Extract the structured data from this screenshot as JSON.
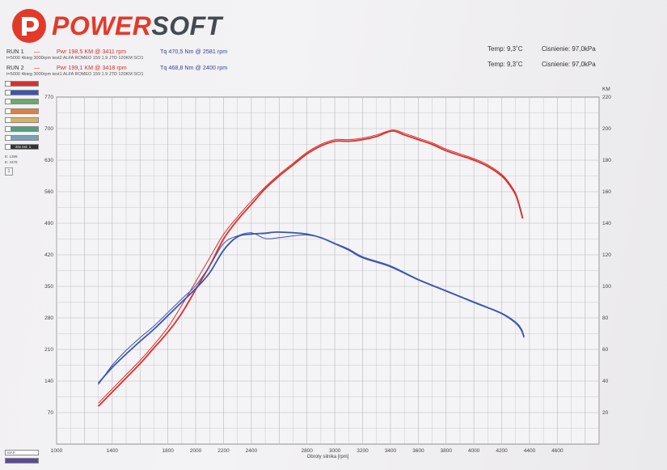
{
  "brand": {
    "name_part1": "POWER",
    "name_part2": "SOFT"
  },
  "run1": {
    "label": "RUN 1",
    "pwr": "Pwr  198,5 KM @ 3411 rpm",
    "tq": "Tq 470,5 Nm @ 2581 rpm",
    "desc": "t=5000 4bieg 3000rpm test2 ALFA ROMEO 159 1.9 JTD 120KM SCI1",
    "temp": "Temp: 9,3˚C",
    "pressure": "Cisnienie: 97,0kPa"
  },
  "run2": {
    "label": "RUN 2",
    "pwr": "Pwr  199,1 KM @ 3418 rpm",
    "tq": "Tq 468,8 Nm @ 2400 rpm",
    "desc": "t=5000 4bieg 3000rpm test1 ALFA ROMEO 159 1.9 JTD 120KM SCI1",
    "temp": "Temp: 9,3˚C",
    "pressure": "Cisnienie: 97,0kPa"
  },
  "colors": {
    "power": "#d8302a",
    "torque": "#3b55b0",
    "grid": "#b8b8bc"
  },
  "left_legend": {
    "items": [
      "",
      "",
      "",
      "",
      "",
      "",
      "",
      "2sv ext. 1"
    ],
    "colors": [
      "#d8302a",
      "#3b55b0",
      "#6aaa6a",
      "#e08040",
      "#d8b060",
      "#50a080",
      "#7aa0c0",
      "#333333"
    ],
    "tail": [
      "E: 1399",
      "E: 4378"
    ],
    "box": "1",
    "bottom": [
      "MAP",
      ""
    ]
  },
  "chart_data": {
    "type": "line",
    "xlabel": "Obroty silnika [rpm]",
    "left_unit": "",
    "right_unit": "KM",
    "xlim": [
      1000,
      4900
    ],
    "ylim_left": [
      0,
      770
    ],
    "ylim_right": [
      0,
      220
    ],
    "x_ticks": [
      1000,
      1200,
      1400,
      1600,
      1800,
      2000,
      2200,
      2400,
      2600,
      2800,
      3000,
      3200,
      3400,
      3600,
      3800,
      4000,
      4200,
      4400,
      4600,
      4800
    ],
    "x_tick_labels": [
      "1000",
      "1400",
      "1800",
      "2000",
      "2200",
      "2400",
      "2800",
      "3000",
      "3200",
      "3400",
      "3600",
      "3800",
      "4000",
      "4200",
      "4400",
      "4600"
    ],
    "x_tick_label_values": [
      1000,
      1400,
      1800,
      2000,
      2200,
      2400,
      2800,
      3000,
      3200,
      3400,
      3600,
      3800,
      4000,
      4200,
      4400,
      4600
    ],
    "y_left_ticks": [
      70,
      140,
      210,
      280,
      350,
      420,
      490,
      560,
      630,
      700,
      770
    ],
    "y_right_ticks": [
      20,
      40,
      60,
      80,
      100,
      120,
      140,
      160,
      180,
      200,
      220
    ],
    "grid": true,
    "series": [
      {
        "name": "Pwr RUN 1",
        "axis": "right",
        "color": "#d8302a",
        "x": [
          1300,
          1400,
          1500,
          1600,
          1700,
          1800,
          1900,
          2000,
          2100,
          2200,
          2300,
          2400,
          2500,
          2600,
          2700,
          2800,
          2900,
          3000,
          3100,
          3200,
          3300,
          3411,
          3500,
          3600,
          3700,
          3800,
          3900,
          4000,
          4100,
          4200,
          4250,
          4300,
          4330,
          4350
        ],
        "y": [
          24,
          33,
          42,
          51,
          61,
          71,
          83,
          98,
          113,
          130,
          142,
          152,
          162,
          170,
          177,
          184,
          189,
          192,
          192,
          193,
          195,
          198.5,
          196,
          193,
          190,
          186,
          183,
          180,
          176,
          170,
          165,
          158,
          150,
          143
        ]
      },
      {
        "name": "Pwr RUN 2",
        "axis": "right",
        "color": "#d8302a",
        "x": [
          1300,
          1400,
          1500,
          1600,
          1700,
          1800,
          1900,
          2000,
          2100,
          2200,
          2300,
          2400,
          2500,
          2600,
          2700,
          2800,
          2900,
          3000,
          3100,
          3200,
          3300,
          3418,
          3500,
          3600,
          3700,
          3800,
          3900,
          4000,
          4100,
          4200,
          4250,
          4300,
          4330,
          4350
        ],
        "y": [
          26,
          35,
          44,
          53,
          63,
          74,
          88,
          103,
          118,
          133,
          144,
          154,
          163,
          171,
          178,
          185,
          190,
          193,
          193,
          194,
          196,
          199.1,
          197,
          194,
          191,
          187,
          184,
          181,
          177,
          171,
          166,
          159,
          151,
          144
        ]
      },
      {
        "name": "Tq RUN 1",
        "axis": "left",
        "color": "#3b55b0",
        "x": [
          1300,
          1400,
          1500,
          1600,
          1700,
          1800,
          1900,
          2000,
          2100,
          2200,
          2300,
          2400,
          2500,
          2581,
          2700,
          2800,
          2900,
          3000,
          3100,
          3200,
          3400,
          3600,
          3800,
          4000,
          4200,
          4300,
          4340,
          4360
        ],
        "y": [
          135,
          170,
          200,
          228,
          255,
          285,
          315,
          345,
          380,
          430,
          460,
          466,
          468,
          470.5,
          469,
          466,
          458,
          445,
          432,
          415,
          395,
          365,
          340,
          315,
          290,
          270,
          255,
          238
        ]
      },
      {
        "name": "Tq RUN 2",
        "axis": "left",
        "color": "#3b55b0",
        "x": [
          1300,
          1400,
          1500,
          1600,
          1700,
          1800,
          1900,
          2000,
          2100,
          2200,
          2300,
          2400,
          2500,
          2600,
          2700,
          2800,
          2900,
          3000,
          3100,
          3200,
          3400,
          3600,
          3800,
          4000,
          4200,
          4300,
          4340,
          4360
        ],
        "y": [
          132,
          175,
          208,
          236,
          262,
          292,
          322,
          352,
          395,
          445,
          462,
          468.8,
          456,
          458,
          462,
          464,
          458,
          444,
          430,
          413,
          393,
          364,
          339,
          314,
          289,
          268,
          252,
          236
        ]
      }
    ]
  }
}
